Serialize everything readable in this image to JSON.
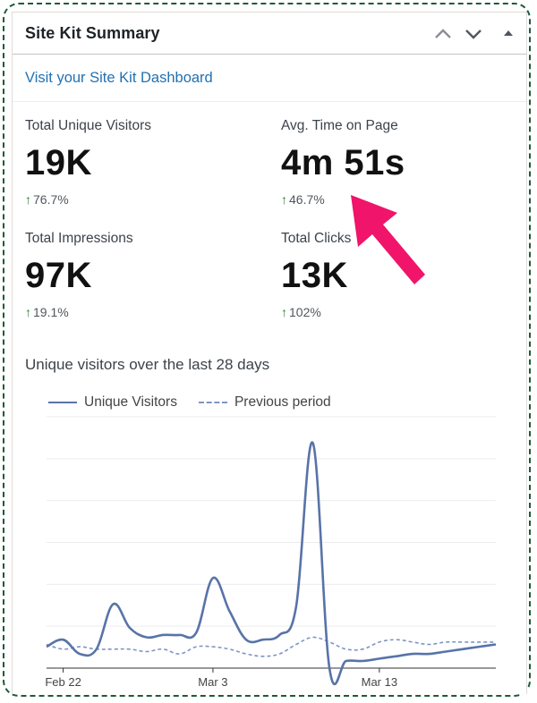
{
  "widget": {
    "title": "Site Kit Summary",
    "dashboard_link": "Visit your Site Kit Dashboard"
  },
  "metrics": [
    {
      "label": "Total Unique Visitors",
      "value": "19K",
      "change": "76.7%"
    },
    {
      "label": "Avg. Time on Page",
      "value": "4m 51s",
      "change": "46.7%"
    },
    {
      "label": "Total Impressions",
      "value": "97K",
      "change": "19.1%"
    },
    {
      "label": "Total Clicks",
      "value": "13K",
      "change": "102%"
    }
  ],
  "colors": {
    "accent_link": "#2271b1",
    "trend_up": "#2f7a32",
    "series_current": "#5873a8",
    "series_previous": "#7f95c4",
    "annotation_arrow": "#f0146a",
    "frame_border": "#1f5a3a"
  },
  "chart_data": {
    "type": "line",
    "title": "Unique visitors over the last 28 days",
    "xlabel": "",
    "ylabel": "",
    "x_tick_labels": [
      "Feb 22",
      "Mar 3",
      "Mar 13"
    ],
    "x_tick_days": [
      1,
      10,
      20
    ],
    "legend_position": "top-left",
    "grid": true,
    "ylim": [
      0,
      1
    ],
    "series": [
      {
        "name": "Unique Visitors",
        "style": "solid",
        "values": [
          0.09,
          0.12,
          0.06,
          0.08,
          0.27,
          0.17,
          0.13,
          0.14,
          0.14,
          0.15,
          0.38,
          0.24,
          0.12,
          0.12,
          0.14,
          0.26,
          0.95,
          0.0,
          0.03,
          0.03,
          0.04,
          0.05,
          0.06,
          0.06,
          0.07,
          0.08,
          0.09,
          0.1
        ]
      },
      {
        "name": "Previous period",
        "style": "dashed",
        "values": [
          0.1,
          0.08,
          0.09,
          0.08,
          0.08,
          0.08,
          0.07,
          0.08,
          0.06,
          0.09,
          0.09,
          0.08,
          0.06,
          0.05,
          0.06,
          0.1,
          0.13,
          0.11,
          0.08,
          0.08,
          0.11,
          0.12,
          0.11,
          0.1,
          0.11,
          0.11,
          0.11,
          0.11
        ]
      }
    ]
  }
}
